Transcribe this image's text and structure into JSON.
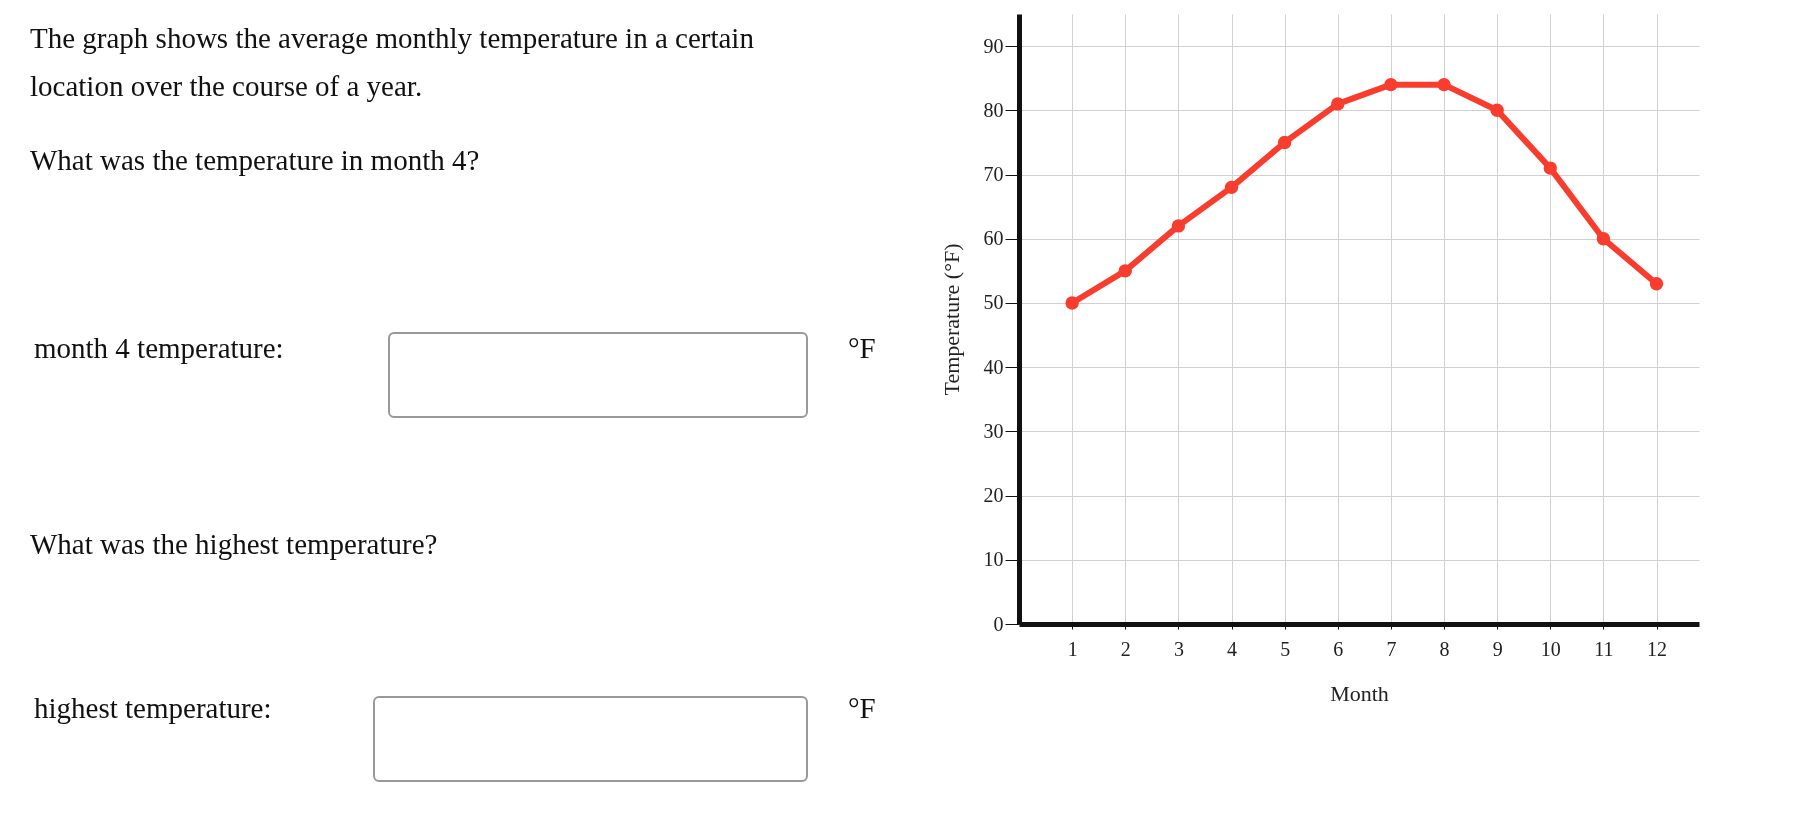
{
  "chart_data": {
    "type": "line",
    "xlabel": "Month",
    "ylabel": "Temperature (°F)",
    "x": [
      1,
      2,
      3,
      4,
      5,
      6,
      7,
      8,
      9,
      10,
      11,
      12
    ],
    "series": [
      {
        "color": "#f83d2e",
        "values": [
          50,
          55,
          62,
          68,
          75,
          81,
          84,
          84,
          80,
          71,
          60,
          53
        ]
      }
    ],
    "xlim": [
      0,
      12.8
    ],
    "xticks": [
      1,
      2,
      3,
      4,
      5,
      6,
      7,
      8,
      9,
      10,
      11,
      12
    ],
    "ylim": [
      0,
      95
    ],
    "yticks": [
      0,
      10,
      20,
      30,
      40,
      50,
      60,
      70,
      80,
      90
    ],
    "grid": true,
    "marker": "circle",
    "line_style": "solid",
    "annotations": [
      "The graph shows the average monthly temperature in a certain location over the course of a year.",
      "What was the temperature in month 4?",
      "month 4 temperature:",
      "°F",
      "What was the highest temperature?",
      "highest temperature:",
      "°F"
    ]
  }
}
